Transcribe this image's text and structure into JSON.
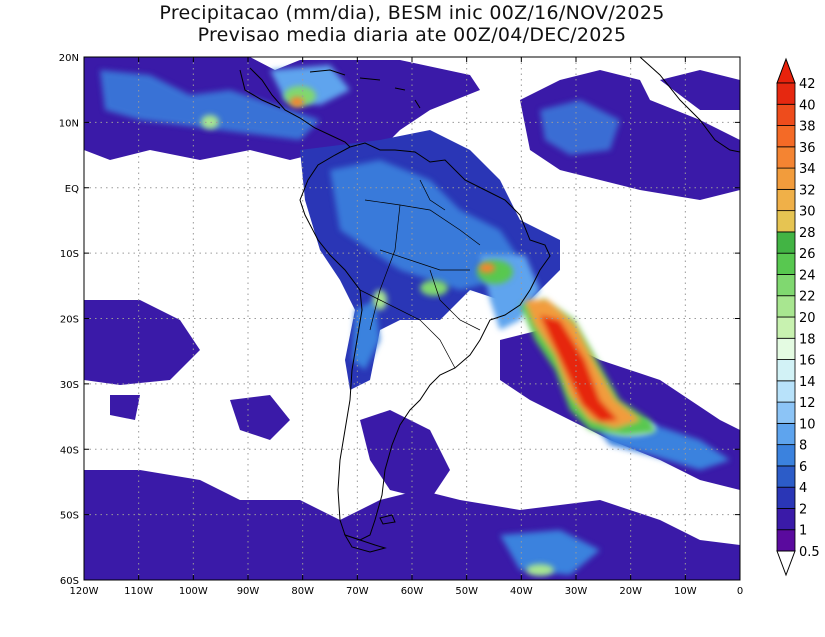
{
  "title": {
    "line1": "Precipitacao (mm/dia), BESM inic 00Z/16/NOV/2025",
    "line2": "Previsao media diaria ate 00Z/04/DEC/2025"
  },
  "map": {
    "lon_range": [
      -120,
      0
    ],
    "lat_range": [
      -60,
      20
    ],
    "lat_ticks": [
      {
        "value": 20,
        "label": "20N"
      },
      {
        "value": 10,
        "label": "10N"
      },
      {
        "value": 0,
        "label": "EQ"
      },
      {
        "value": -10,
        "label": "10S"
      },
      {
        "value": -20,
        "label": "20S"
      },
      {
        "value": -30,
        "label": "30S"
      },
      {
        "value": -40,
        "label": "40S"
      },
      {
        "value": -50,
        "label": "50S"
      },
      {
        "value": -60,
        "label": "60S"
      }
    ],
    "lon_ticks": [
      {
        "value": -120,
        "label": "120W"
      },
      {
        "value": -110,
        "label": "110W"
      },
      {
        "value": -100,
        "label": "100W"
      },
      {
        "value": -90,
        "label": "90W"
      },
      {
        "value": -80,
        "label": "80W"
      },
      {
        "value": -70,
        "label": "70W"
      },
      {
        "value": -60,
        "label": "60W"
      },
      {
        "value": -50,
        "label": "50W"
      },
      {
        "value": -40,
        "label": "40W"
      },
      {
        "value": -30,
        "label": "30W"
      },
      {
        "value": -20,
        "label": "20W"
      },
      {
        "value": -10,
        "label": "10W"
      },
      {
        "value": 0,
        "label": "0"
      }
    ],
    "grid": true,
    "grid_style": "dotted"
  },
  "colorbar": {
    "levels": [
      "0.5",
      "1",
      "2",
      "4",
      "6",
      "8",
      "10",
      "12",
      "14",
      "16",
      "18",
      "20",
      "22",
      "24",
      "26",
      "28",
      "30",
      "32",
      "34",
      "36",
      "38",
      "40",
      "42"
    ],
    "colors": [
      "#5a0a9e",
      "#3a1aa8",
      "#2a36b6",
      "#2c5cc8",
      "#3b82de",
      "#5ea4ee",
      "#8cc4f6",
      "#b8e2fa",
      "#d2f2f6",
      "#e4fbe2",
      "#c8f2b0",
      "#a8e690",
      "#80d870",
      "#58c850",
      "#42b444",
      "#e6c452",
      "#f0b048",
      "#f29c3c",
      "#f48432",
      "#f46a26",
      "#ee4c1c",
      "#e62810"
    ],
    "bottom_arrow_color": "#ffffff",
    "top_arrow_color": "#e8220c"
  },
  "colors": {
    "continent_outline": "#000000",
    "grid": "#9a9a9a",
    "precip_low": "#5a0a9e",
    "precip_mid": "#3b82de",
    "precip_high": "#e62810"
  }
}
